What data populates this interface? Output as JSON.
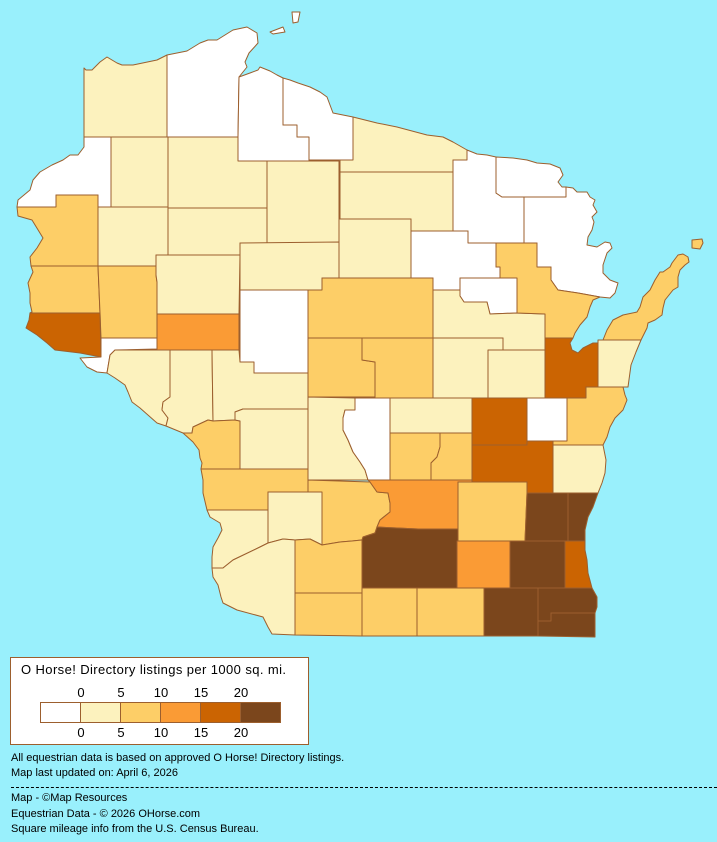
{
  "colors": {
    "background": "#99F0FC",
    "border": "#9C5F2E",
    "levels": [
      "#FFFFFF",
      "#FCF2BE",
      "#FDCE67",
      "#FA9B35",
      "#CB6402",
      "#7B461C"
    ]
  },
  "map": {
    "county_levels": {
      "douglas": 1,
      "bayfield": 0,
      "ashland": 0,
      "iron": 0,
      "vilas": 1,
      "oneida": 1,
      "forest": 0,
      "florence": 0,
      "marinette": 0,
      "langlade": 0,
      "menominee": 0,
      "shawano": 1,
      "oconto": 2,
      "door": 2,
      "kewaunee": 1,
      "brown": 4,
      "outagamie": 1,
      "waupaca": 1,
      "burnett": 0,
      "washburn": 1,
      "sawyer": 1,
      "price": 1,
      "rusk": 1,
      "barron": 1,
      "polk": 2,
      "st-croix": 2,
      "dunn": 2,
      "chippewa": 1,
      "pierce": 4,
      "eau-claire": 3,
      "pepin": 0,
      "buffalo": 1,
      "trempealeau": 1,
      "jackson": 1,
      "clark": 0,
      "taylor": 1,
      "lincoln": 1,
      "marathon": 2,
      "wood": 2,
      "portage": 2,
      "juneau": 1,
      "adams": 0,
      "waushara": 1,
      "marquette": 2,
      "green-lake": 2,
      "winnebago": 4,
      "calumet": 0,
      "manitowoc": 2,
      "fond-du-lac": 4,
      "sheboygan": 1,
      "la-crosse": 2,
      "monroe": 1,
      "vernon": 2,
      "crawford": 1,
      "richland": 1,
      "sauk": 2,
      "columbia": 3,
      "dodge": 2,
      "washington": 5,
      "ozaukee": 5,
      "grant": 1,
      "iowa": 2,
      "lafayette": 2,
      "dane": 5,
      "green": 2,
      "rock": 2,
      "jefferson": 3,
      "waukesha": 5,
      "milwaukee": 4,
      "walworth": 5,
      "racine": 5,
      "kenosha": 5,
      "apostle-island-a": 0,
      "apostle-island-b": 0,
      "washington-island": 2
    }
  },
  "legend": {
    "title": "O Horse! Directory listings per 1000 sq. mi.",
    "top_ticks": [
      "0",
      "5",
      "10",
      "15",
      "20"
    ],
    "bottom_ticks": [
      "0",
      "5",
      "10",
      "15",
      "20"
    ]
  },
  "notes": {
    "line1": "All equestrian data is based on approved O Horse! Directory listings.",
    "line2": "Map last updated on: April 6, 2026"
  },
  "credits": {
    "map": "Map - ©Map Resources",
    "equestrian": "Equestrian Data - © 2026 OHorse.com",
    "census": "Square mileage info from the U.S. Census Bureau."
  }
}
